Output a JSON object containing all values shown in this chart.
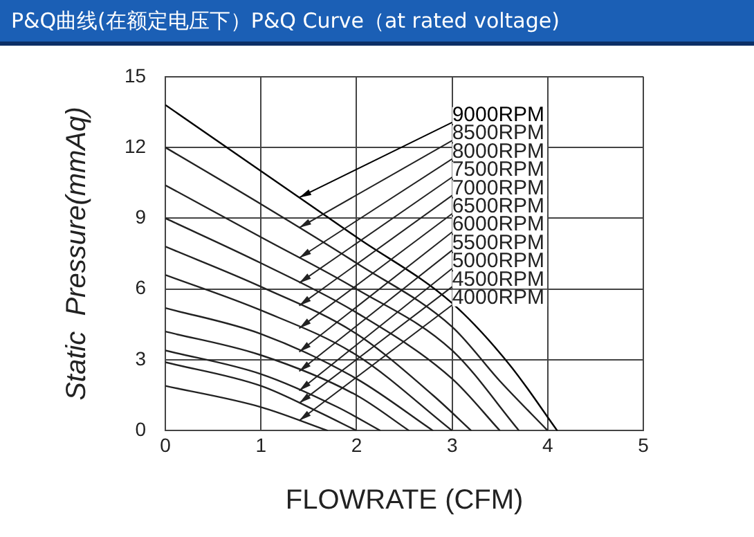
{
  "chart_data": {
    "type": "line",
    "title": "P&Q曲线(在额定电压下）P&Q Curve（at rated voltage)",
    "xlabel": "FLOWRATE (CFM)",
    "ylabel": "Static  Pressure(mmAq)",
    "xlim": [
      0,
      5
    ],
    "xticks": [
      0,
      1,
      2,
      3,
      4,
      5
    ],
    "ylim": [
      0,
      15
    ],
    "yticks": [
      0,
      3,
      6,
      9,
      12,
      15
    ],
    "grid": true,
    "legend": false,
    "marker": "none",
    "line_style": "solid",
    "series": [
      {
        "name": "9000RPM",
        "color": "#000000",
        "x": [
          0,
          1,
          2,
          3,
          3.6,
          4.1
        ],
        "values": [
          13.8,
          11,
          8.2,
          5.4,
          2.8,
          0
        ]
      },
      {
        "name": "8500RPM",
        "color": "#222222",
        "x": [
          0,
          1,
          2,
          3,
          3.5,
          4
        ],
        "values": [
          12,
          9.6,
          7.1,
          4.4,
          2.1,
          0
        ]
      },
      {
        "name": "8000RPM",
        "color": "#222222",
        "x": [
          0,
          1,
          2,
          3,
          3.7
        ],
        "values": [
          10.4,
          8.2,
          6,
          3.4,
          0
        ]
      },
      {
        "name": "7500RPM",
        "color": "#222222",
        "x": [
          0,
          1,
          2,
          3,
          3.5
        ],
        "values": [
          9,
          7.1,
          5,
          2.2,
          0
        ]
      },
      {
        "name": "7000RPM",
        "color": "#222222",
        "x": [
          0,
          1,
          2,
          2.8,
          3.2
        ],
        "values": [
          7.8,
          6.1,
          4.1,
          1.5,
          0
        ]
      },
      {
        "name": "6500RPM",
        "color": "#222222",
        "x": [
          0,
          1,
          2,
          3
        ],
        "values": [
          6.6,
          5.1,
          3.2,
          0
        ]
      },
      {
        "name": "6000RPM",
        "color": "#222222",
        "x": [
          0,
          1,
          2,
          2.8
        ],
        "values": [
          5.2,
          4.1,
          2.2,
          0
        ]
      },
      {
        "name": "5500RPM",
        "color": "#222222",
        "x": [
          0,
          1,
          2,
          2.55
        ],
        "values": [
          4.2,
          3.2,
          1.5,
          0
        ]
      },
      {
        "name": "5000RPM",
        "color": "#222222",
        "x": [
          0,
          1,
          1.8,
          2.25
        ],
        "values": [
          3.4,
          2.4,
          1,
          0
        ]
      },
      {
        "name": "4500RPM",
        "color": "#222222",
        "x": [
          0,
          1,
          1.6,
          2
        ],
        "values": [
          2.9,
          1.9,
          0.8,
          0
        ]
      },
      {
        "name": "4000RPM",
        "color": "#222222",
        "x": [
          0,
          1,
          1.7
        ],
        "values": [
          1.9,
          1,
          0
        ]
      }
    ]
  }
}
